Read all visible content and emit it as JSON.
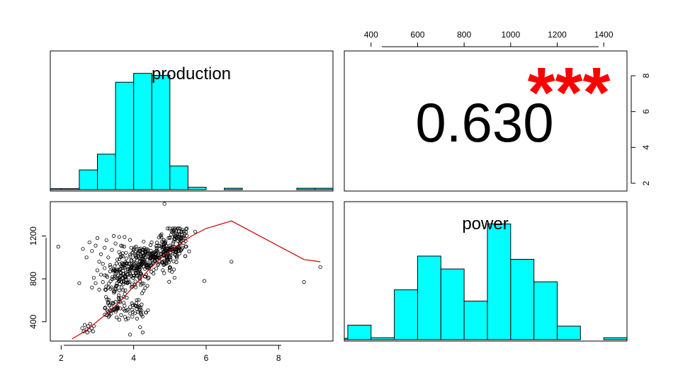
{
  "chart_data": [
    {
      "panel": "top-left",
      "type": "bar",
      "title": "production",
      "bin_width": 0.5,
      "x_range": [
        1.7,
        9.5
      ],
      "bins": [
        {
          "start": 1.5,
          "end": 2.0,
          "height": 0.05
        },
        {
          "start": 2.0,
          "end": 2.5,
          "height": 0.05
        },
        {
          "start": 2.5,
          "end": 3.0,
          "height": 1.0
        },
        {
          "start": 3.0,
          "end": 3.5,
          "height": 1.8
        },
        {
          "start": 3.5,
          "end": 4.0,
          "height": 5.45
        },
        {
          "start": 4.0,
          "end": 4.5,
          "height": 5.9
        },
        {
          "start": 4.5,
          "end": 5.0,
          "height": 5.8
        },
        {
          "start": 5.0,
          "end": 5.5,
          "height": 1.2
        },
        {
          "start": 5.5,
          "end": 6.0,
          "height": 0.12
        },
        {
          "start": 6.5,
          "end": 7.0,
          "height": 0.07
        },
        {
          "start": 8.5,
          "end": 9.0,
          "height": 0.07
        },
        {
          "start": 9.0,
          "end": 9.5,
          "height": 0.07
        }
      ]
    },
    {
      "panel": "top-right",
      "type": "table",
      "value_label": "0.630",
      "significance": "***",
      "significance_color": "#ff0000",
      "top_axis_ticks": [
        "400",
        "600",
        "800",
        "1000",
        "1200",
        "1400"
      ],
      "right_axis_ticks": [
        "2",
        "4",
        "6",
        "8"
      ]
    },
    {
      "panel": "bottom-left",
      "type": "scatter",
      "xlim": [
        1.7,
        9.5
      ],
      "ylim": [
        220,
        1520
      ],
      "x_ticks": [
        "2",
        "4",
        "6",
        "8"
      ],
      "y_ticks": [
        "400",
        "800",
        "1200"
      ],
      "point_count": 640,
      "points": [
        [
          1.92,
          1100
        ],
        [
          2.5,
          760
        ],
        [
          2.58,
          340
        ],
        [
          2.62,
          310
        ],
        [
          2.65,
          370
        ],
        [
          2.7,
          330
        ],
        [
          2.72,
          300
        ],
        [
          2.75,
          360
        ],
        [
          2.78,
          320
        ],
        [
          2.8,
          380
        ],
        [
          2.84,
          340
        ],
        [
          2.88,
          310
        ],
        [
          2.9,
          360
        ],
        [
          2.6,
          1080
        ],
        [
          2.7,
          1000
        ],
        [
          2.78,
          1140
        ],
        [
          2.85,
          1060
        ],
        [
          2.95,
          1110
        ],
        [
          3.0,
          1180
        ],
        [
          3.05,
          960
        ],
        [
          3.1,
          1030
        ],
        [
          3.15,
          940
        ],
        [
          3.2,
          1090
        ],
        [
          3.25,
          1160
        ],
        [
          3.3,
          1000
        ],
        [
          3.35,
          930
        ],
        [
          3.4,
          1070
        ],
        [
          3.45,
          1200
        ],
        [
          3.5,
          1130
        ],
        [
          3.55,
          980
        ],
        [
          3.6,
          1050
        ],
        [
          3.65,
          1110
        ],
        [
          3.7,
          1010
        ],
        [
          3.75,
          1190
        ],
        [
          2.85,
          720
        ],
        [
          2.9,
          810
        ],
        [
          2.95,
          760
        ],
        [
          3.0,
          880
        ],
        [
          3.05,
          700
        ],
        [
          3.1,
          840
        ],
        [
          3.15,
          770
        ],
        [
          3.2,
          900
        ],
        [
          3.25,
          830
        ],
        [
          3.3,
          720
        ],
        [
          3.35,
          870
        ],
        [
          4.85,
          1500
        ],
        [
          3.9,
          280
        ],
        [
          4.25,
          300
        ],
        [
          5.95,
          780
        ],
        [
          6.7,
          960
        ],
        [
          8.7,
          770
        ],
        [
          9.15,
          910
        ],
        [
          5.7,
          1240
        ],
        [
          5.4,
          1180
        ]
      ],
      "smooth_line": [
        [
          2.3,
          240
        ],
        [
          2.7,
          320
        ],
        [
          3.2,
          460
        ],
        [
          3.6,
          580
        ],
        [
          4.0,
          730
        ],
        [
          4.4,
          880
        ],
        [
          4.8,
          1010
        ],
        [
          5.2,
          1110
        ],
        [
          5.6,
          1200
        ],
        [
          6.0,
          1270
        ],
        [
          6.7,
          1340
        ],
        [
          8.7,
          980
        ],
        [
          9.15,
          960
        ]
      ],
      "smooth_color": "#cc0000"
    },
    {
      "panel": "bottom-right",
      "type": "bar",
      "title": "power",
      "bin_width": 100,
      "x_range": [
        285,
        1500
      ],
      "bins": [
        {
          "start": 200,
          "end": 300,
          "height": 0.04
        },
        {
          "start": 300,
          "end": 400,
          "height": 0.45
        },
        {
          "start": 400,
          "end": 500,
          "height": 0.06
        },
        {
          "start": 500,
          "end": 600,
          "height": 1.55
        },
        {
          "start": 600,
          "end": 700,
          "height": 2.6
        },
        {
          "start": 700,
          "end": 800,
          "height": 2.2
        },
        {
          "start": 800,
          "end": 900,
          "height": 1.2
        },
        {
          "start": 900,
          "end": 1000,
          "height": 3.6
        },
        {
          "start": 1000,
          "end": 1100,
          "height": 2.5
        },
        {
          "start": 1100,
          "end": 1200,
          "height": 1.8
        },
        {
          "start": 1200,
          "end": 1300,
          "height": 0.42
        },
        {
          "start": 1400,
          "end": 1500,
          "height": 0.06
        }
      ]
    }
  ],
  "colors": {
    "hist_fill": "#00ffff",
    "frame": "#000000",
    "background": "#ffffff"
  }
}
